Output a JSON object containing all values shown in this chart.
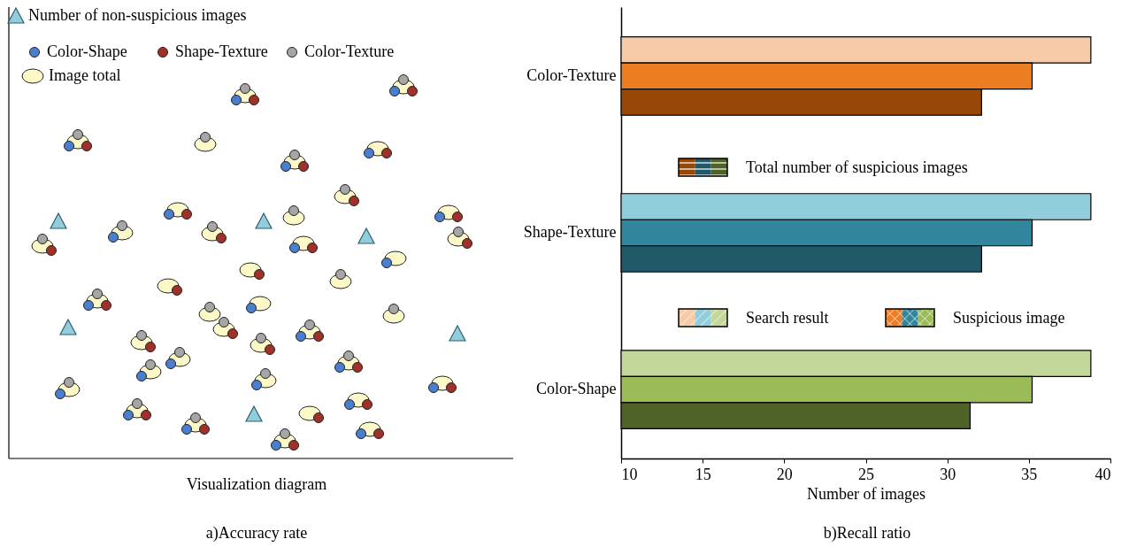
{
  "chart_data": [
    {
      "type": "other",
      "xlabel": "Visualization diagram",
      "annotations": [
        "Number of non-suspicious images",
        "Color-Shape",
        "Shape-Texture",
        "Color-Texture",
        "Image total",
        "a)Accuracy rate"
      ]
    },
    {
      "type": "bar",
      "orientation": "horizontal",
      "xlabel": "Number of images",
      "categories": [
        "Color-Texture",
        "Shape-Texture",
        "Color-Shape"
      ],
      "series": [
        {
          "name": "Search result",
          "colors": [
            "#f8cba8",
            "#92cddc",
            "#c4d79b"
          ],
          "values": [
            38.8,
            38.8,
            38.8
          ]
        },
        {
          "name": "Suspicious image",
          "colors": [
            "#ec7d23",
            "#31859c",
            "#9bbb59"
          ],
          "values": [
            35.2,
            35.2,
            35.2
          ]
        },
        {
          "name": "Total number of suspicious images",
          "colors": [
            "#974806",
            "#215968",
            "#4f6228"
          ],
          "values": [
            32.1,
            32.1,
            31.4
          ]
        }
      ],
      "xlim": [
        10,
        40
      ],
      "xticks": [
        10,
        15,
        20,
        25,
        30,
        35,
        40
      ],
      "legend": "right",
      "annotations": [
        "b)Recall ratio"
      ]
    }
  ]
}
